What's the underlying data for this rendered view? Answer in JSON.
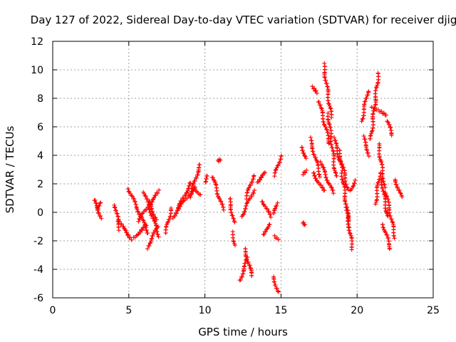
{
  "chart_data": {
    "type": "scatter",
    "title": "Day 127 of 2022, Sidereal Day-to-day VTEC variation (SDTVAR) for receiver djig",
    "xlabel": "GPS time / hours",
    "ylabel": "SDTVAR / TECUs",
    "xlim": [
      0,
      25
    ],
    "ylim": [
      -6,
      12
    ],
    "xticks": [
      "0",
      "5",
      "10",
      "15",
      "20",
      "25"
    ],
    "yticks": [
      "-6",
      "-4",
      "-2",
      "0",
      "2",
      "4",
      "6",
      "8",
      "10",
      "12"
    ],
    "grid": true,
    "marker": "+",
    "marker_color": "#ff0000",
    "segments": [
      {
        "x0": 2.7,
        "x1": 3.2,
        "y0": 0.9,
        "y1": -0.4
      },
      {
        "x0": 2.9,
        "x1": 3.2,
        "y0": 0.2,
        "y1": 0.7
      },
      {
        "x0": 4.1,
        "x1": 4.4,
        "y0": 0.5,
        "y1": -1.2
      },
      {
        "x0": 4.3,
        "x1": 5.2,
        "y0": -0.6,
        "y1": -1.9
      },
      {
        "x0": 5.0,
        "x1": 6.3,
        "y0": 1.6,
        "y1": -1.5
      },
      {
        "x0": 5.3,
        "x1": 6.2,
        "y0": -1.8,
        "y1": -0.9
      },
      {
        "x0": 5.6,
        "x1": 7.0,
        "y0": -0.6,
        "y1": 1.5
      },
      {
        "x0": 6.0,
        "x1": 7.0,
        "y0": 1.4,
        "y1": -1.7
      },
      {
        "x0": 6.2,
        "x1": 6.9,
        "y0": -2.5,
        "y1": -1.0
      },
      {
        "x0": 6.3,
        "x1": 6.8,
        "y0": 0.8,
        "y1": -0.5
      },
      {
        "x0": 7.4,
        "x1": 7.8,
        "y0": -1.5,
        "y1": 0.3
      },
      {
        "x0": 7.9,
        "x1": 9.1,
        "y0": -0.4,
        "y1": 2.1
      },
      {
        "x0": 8.2,
        "x1": 9.4,
        "y0": 0.2,
        "y1": 1.8
      },
      {
        "x0": 9.0,
        "x1": 9.7,
        "y0": 1.1,
        "y1": 3.4
      },
      {
        "x0": 9.4,
        "x1": 9.7,
        "y0": 1.6,
        "y1": 1.2
      },
      {
        "x0": 10.0,
        "x1": 10.2,
        "y0": 2.1,
        "y1": 2.6
      },
      {
        "x0": 10.5,
        "x1": 11.2,
        "y0": 2.5,
        "y1": 0.2
      },
      {
        "x0": 10.8,
        "x1": 11.0,
        "y0": 3.6,
        "y1": 3.7
      },
      {
        "x0": 11.6,
        "x1": 11.9,
        "y0": 1.0,
        "y1": -0.7
      },
      {
        "x0": 11.8,
        "x1": 12.0,
        "y0": -1.4,
        "y1": -2.3
      },
      {
        "x0": 12.3,
        "x1": 12.8,
        "y0": -4.8,
        "y1": -3.2
      },
      {
        "x0": 12.6,
        "x1": 13.1,
        "y0": -2.5,
        "y1": -4.5
      },
      {
        "x0": 12.4,
        "x1": 13.2,
        "y0": -0.3,
        "y1": 1.5
      },
      {
        "x0": 12.7,
        "x1": 13.2,
        "y0": 1.0,
        "y1": 2.6
      },
      {
        "x0": 13.4,
        "x1": 14.0,
        "y0": 2.1,
        "y1": 2.8
      },
      {
        "x0": 13.8,
        "x1": 14.3,
        "y0": 0.8,
        "y1": -0.3
      },
      {
        "x0": 13.9,
        "x1": 14.2,
        "y0": -1.6,
        "y1": -0.8
      },
      {
        "x0": 14.5,
        "x1": 14.8,
        "y0": -4.5,
        "y1": -5.6
      },
      {
        "x0": 14.5,
        "x1": 14.8,
        "y0": -0.1,
        "y1": 0.6
      },
      {
        "x0": 14.6,
        "x1": 14.9,
        "y0": -1.7,
        "y1": -1.9
      },
      {
        "x0": 14.6,
        "x1": 15.0,
        "y0": 2.6,
        "y1": 4.0
      },
      {
        "x0": 16.4,
        "x1": 16.6,
        "y0": 4.6,
        "y1": 3.8
      },
      {
        "x0": 16.5,
        "x1": 16.6,
        "y0": -0.7,
        "y1": -0.9
      },
      {
        "x0": 16.5,
        "x1": 16.7,
        "y0": 2.7,
        "y1": 2.9
      },
      {
        "x0": 16.9,
        "x1": 17.6,
        "y0": 5.2,
        "y1": 2.5
      },
      {
        "x0": 17.1,
        "x1": 17.8,
        "y0": 2.8,
        "y1": 1.5
      },
      {
        "x0": 17.0,
        "x1": 17.4,
        "y0": 8.8,
        "y1": 8.4
      },
      {
        "x0": 17.5,
        "x1": 18.2,
        "y0": 7.8,
        "y1": 4.8
      },
      {
        "x0": 17.6,
        "x1": 18.4,
        "y0": 3.5,
        "y1": 1.4
      },
      {
        "x0": 17.8,
        "x1": 18.3,
        "y0": 10.4,
        "y1": 6.7
      },
      {
        "x0": 18.1,
        "x1": 18.6,
        "y0": 6.9,
        "y1": 2.5
      },
      {
        "x0": 18.5,
        "x1": 19.0,
        "y0": 5.2,
        "y1": 3.0
      },
      {
        "x0": 18.8,
        "x1": 19.4,
        "y0": 4.4,
        "y1": 1.6
      },
      {
        "x0": 19.0,
        "x1": 19.5,
        "y0": 2.8,
        "y1": -1.1
      },
      {
        "x0": 19.3,
        "x1": 19.7,
        "y0": 0.3,
        "y1": -2.6
      },
      {
        "x0": 19.5,
        "x1": 19.9,
        "y0": 1.5,
        "y1": 2.2
      },
      {
        "x0": 20.3,
        "x1": 20.7,
        "y0": 6.4,
        "y1": 8.5
      },
      {
        "x0": 20.4,
        "x1": 20.8,
        "y0": 5.3,
        "y1": 4.0
      },
      {
        "x0": 20.9,
        "x1": 21.4,
        "y0": 5.1,
        "y1": 9.8
      },
      {
        "x0": 21.0,
        "x1": 21.9,
        "y0": 7.4,
        "y1": 6.8
      },
      {
        "x0": 21.2,
        "x1": 21.5,
        "y0": 0.6,
        "y1": 2.8
      },
      {
        "x0": 21.4,
        "x1": 21.8,
        "y0": 4.8,
        "y1": 1.8
      },
      {
        "x0": 21.6,
        "x1": 22.0,
        "y0": 2.3,
        "y1": -0.3
      },
      {
        "x0": 21.7,
        "x1": 22.2,
        "y0": -0.8,
        "y1": -2.6
      },
      {
        "x0": 21.9,
        "x1": 22.5,
        "y0": 1.4,
        "y1": -1.8
      },
      {
        "x0": 22.0,
        "x1": 22.3,
        "y0": 6.4,
        "y1": 5.4
      },
      {
        "x0": 22.5,
        "x1": 22.9,
        "y0": 2.3,
        "y1": 1.1
      }
    ]
  }
}
